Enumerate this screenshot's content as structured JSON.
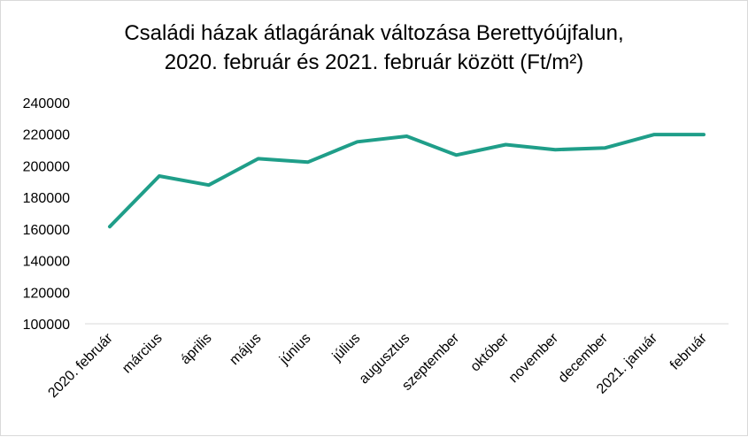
{
  "chart_data": {
    "type": "line",
    "title_line1": "Családi házak átlagárának változása Berettyóújfalun,",
    "title_line2": "2020. február és 2021. február között (Ft/m²)",
    "categories": [
      "2020. február",
      "március",
      "április",
      "május",
      "június",
      "július",
      "augusztus",
      "szeptember",
      "október",
      "november",
      "december",
      "2021. január",
      "február"
    ],
    "series": [
      {
        "values": [
          161500,
          193500,
          187800,
          204500,
          202300,
          215200,
          218700,
          206800,
          213400,
          210200,
          211300,
          219800,
          219800
        ]
      }
    ],
    "yticks": [
      "240000",
      "220000",
      "200000",
      "180000",
      "160000",
      "140000",
      "120000",
      "100000"
    ],
    "ylim": [
      100000,
      240000
    ],
    "grid": false,
    "line_color": "#1f9e89"
  }
}
